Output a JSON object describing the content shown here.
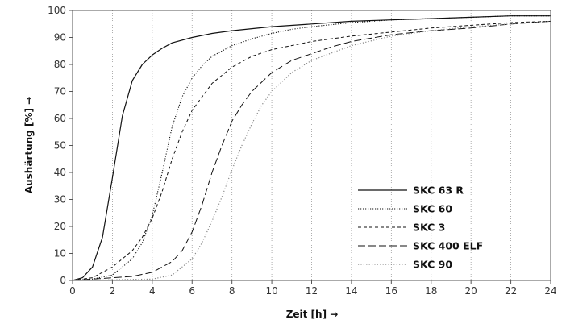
{
  "chart_data": {
    "type": "line",
    "xlabel": "Zeit [h] →",
    "ylabel": "Aushärtung [%] →",
    "xlim": [
      0,
      24
    ],
    "ylim": [
      0,
      100
    ],
    "x_ticks": [
      "0",
      "2",
      "4",
      "6",
      "8",
      "10",
      "12",
      "14",
      "16",
      "18",
      "20",
      "22",
      "24"
    ],
    "y_ticks": [
      "0",
      "10",
      "20",
      "30",
      "40",
      "50",
      "60",
      "70",
      "80",
      "90",
      "100"
    ],
    "grid": "vertical dotted lines at every x tick",
    "legend_position": "lower-center-right",
    "series": [
      {
        "name": "SKC 63 R",
        "style": "solid",
        "color": "#111111",
        "x": [
          0,
          0.5,
          1,
          1.5,
          2,
          2.5,
          3,
          3.5,
          4,
          4.5,
          5,
          6,
          7,
          8,
          10,
          12,
          14,
          16,
          18,
          20,
          22,
          24
        ],
        "y": [
          0,
          1,
          5,
          16,
          38,
          61,
          74,
          80,
          83.5,
          86,
          88,
          90,
          91.5,
          92.5,
          94,
          95,
          96,
          96.5,
          97,
          97.5,
          98,
          98
        ]
      },
      {
        "name": "SKC 60",
        "style": "dotted",
        "color": "#111111",
        "x": [
          0,
          1,
          2,
          3,
          3.5,
          4,
          4.5,
          5,
          5.5,
          6,
          6.5,
          7,
          8,
          9,
          10,
          11,
          12,
          14,
          16,
          18,
          20,
          22,
          24
        ],
        "y": [
          0,
          0.5,
          2,
          8,
          14,
          24,
          40,
          57,
          68,
          75,
          79.5,
          83,
          87,
          89.5,
          91.5,
          93,
          94,
          95.5,
          96.5,
          97,
          97.5,
          98,
          98
        ]
      },
      {
        "name": "SKC 3",
        "style": "dashed",
        "color": "#111111",
        "x": [
          0,
          1,
          2,
          3,
          3.5,
          4,
          4.5,
          5,
          5.5,
          6,
          7,
          8,
          9,
          10,
          12,
          14,
          16,
          18,
          20,
          22,
          24
        ],
        "y": [
          0,
          1,
          5,
          11,
          16,
          23,
          33,
          45,
          55,
          63,
          73,
          79,
          83,
          85.5,
          88.5,
          90.5,
          92,
          93.5,
          94.5,
          95.5,
          96
        ]
      },
      {
        "name": "SKC 400 ELF",
        "style": "long-dash",
        "color": "#111111",
        "x": [
          0,
          2,
          3,
          4,
          5,
          5.5,
          6,
          6.5,
          7,
          7.5,
          8,
          8.5,
          9,
          10,
          11,
          12,
          13,
          14,
          16,
          18,
          20,
          22,
          24
        ],
        "y": [
          0,
          1,
          1.5,
          3,
          7,
          11,
          18,
          28,
          40,
          50,
          59,
          65,
          70,
          77,
          81.5,
          84,
          86.5,
          88.5,
          91,
          92.5,
          93.5,
          95,
          96
        ]
      },
      {
        "name": "SKC 90",
        "style": "light-dotted",
        "color": "#888888",
        "x": [
          0,
          4,
          5,
          6,
          6.5,
          7,
          7.5,
          8,
          8.5,
          9,
          9.5,
          10,
          11,
          12,
          14,
          16,
          18,
          20,
          22,
          24
        ],
        "y": [
          0,
          0.5,
          2,
          8,
          14,
          22,
          31,
          41,
          50,
          58,
          65,
          70,
          77,
          81.5,
          87,
          90.5,
          92.5,
          94,
          95,
          96
        ]
      }
    ]
  }
}
